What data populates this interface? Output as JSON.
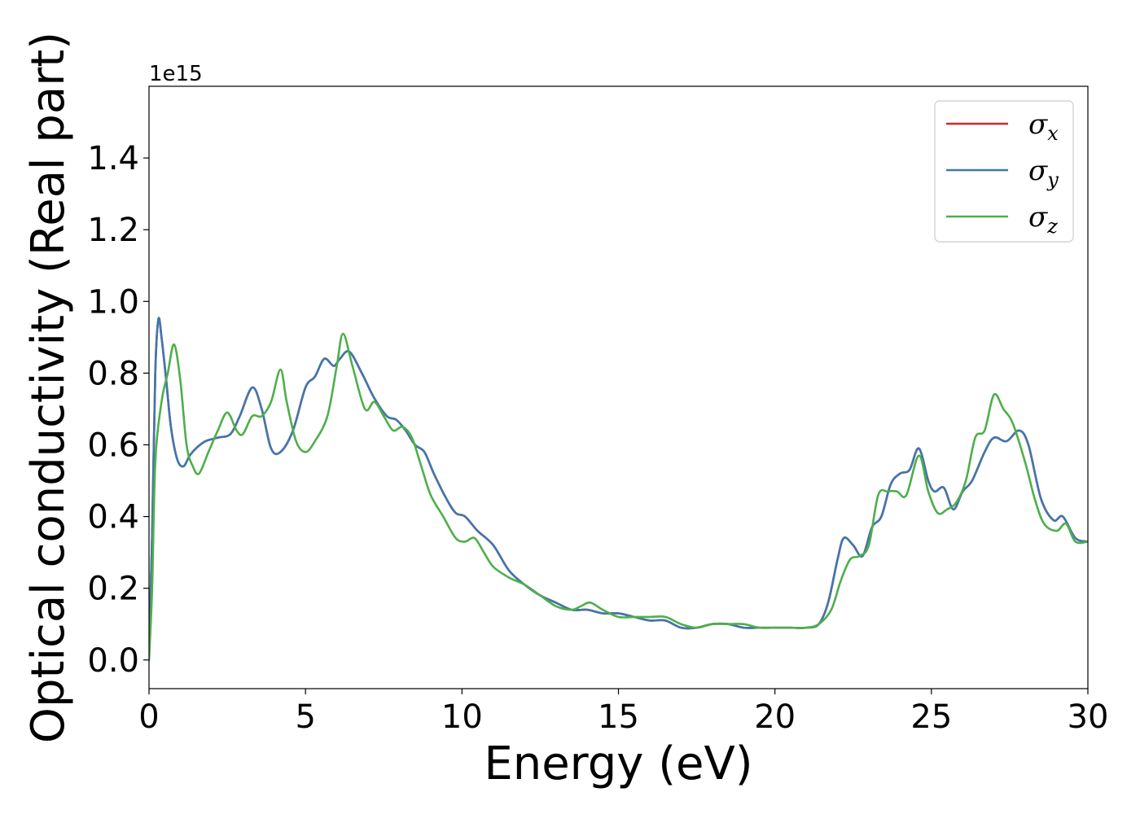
{
  "chart_data": {
    "type": "line",
    "xlabel": "Energy (eV)",
    "ylabel": "Optical conductivity (Real part)",
    "y_offset_label": "1e15",
    "xlim": [
      0,
      30
    ],
    "ylim": [
      -0.08,
      1.6
    ],
    "x_ticks": [
      0,
      5,
      10,
      15,
      20,
      25,
      30
    ],
    "y_ticks": [
      0.0,
      0.2,
      0.4,
      0.6,
      0.8,
      1.0,
      1.2,
      1.4
    ],
    "x_tick_labels": [
      "0",
      "5",
      "10",
      "15",
      "20",
      "25",
      "30"
    ],
    "y_tick_labels": [
      "0.0",
      "0.2",
      "0.4",
      "0.6",
      "0.8",
      "1.0",
      "1.2",
      "1.4"
    ],
    "grid": false,
    "legend_position": "top-right",
    "series": [
      {
        "name": "σx",
        "symbol": "σ",
        "subscript": "x",
        "color": "#d62728",
        "x": [
          0,
          0.1,
          0.2,
          0.3,
          0.4,
          0.55,
          0.7,
          0.9,
          1.1,
          1.3,
          1.5,
          1.8,
          2.2,
          2.6,
          2.9,
          3.3,
          3.6,
          3.9,
          4.2,
          4.6,
          5.0,
          5.3,
          5.6,
          5.9,
          6.1,
          6.4,
          6.8,
          7.2,
          7.6,
          7.9,
          8.2,
          8.5,
          8.8,
          9.1,
          9.5,
          9.8,
          10.1,
          10.5,
          11.0,
          11.5,
          12.0,
          12.5,
          13.0,
          13.5,
          14.0,
          14.5,
          15.0,
          15.5,
          16.0,
          16.5,
          17.0,
          17.5,
          18.0,
          18.5,
          19.0,
          19.5,
          20.0,
          20.5,
          21.0,
          21.4,
          21.7,
          22.0,
          22.2,
          22.5,
          22.8,
          23.1,
          23.4,
          23.7,
          24.0,
          24.3,
          24.6,
          24.9,
          25.1,
          25.4,
          25.7,
          26.0,
          26.3,
          26.7,
          27.0,
          27.4,
          27.8,
          28.1,
          28.5,
          28.9,
          29.2,
          29.6,
          30.0
        ],
        "values": [
          0.02,
          0.35,
          0.8,
          0.95,
          0.9,
          0.78,
          0.65,
          0.56,
          0.54,
          0.57,
          0.59,
          0.61,
          0.62,
          0.63,
          0.68,
          0.76,
          0.7,
          0.59,
          0.58,
          0.64,
          0.76,
          0.79,
          0.84,
          0.82,
          0.84,
          0.86,
          0.8,
          0.73,
          0.68,
          0.67,
          0.64,
          0.6,
          0.58,
          0.52,
          0.45,
          0.41,
          0.4,
          0.36,
          0.32,
          0.25,
          0.21,
          0.18,
          0.16,
          0.14,
          0.14,
          0.13,
          0.13,
          0.12,
          0.11,
          0.11,
          0.09,
          0.09,
          0.1,
          0.1,
          0.09,
          0.09,
          0.09,
          0.09,
          0.09,
          0.1,
          0.16,
          0.28,
          0.34,
          0.32,
          0.29,
          0.37,
          0.4,
          0.49,
          0.52,
          0.53,
          0.59,
          0.5,
          0.47,
          0.48,
          0.42,
          0.47,
          0.5,
          0.58,
          0.62,
          0.61,
          0.64,
          0.6,
          0.45,
          0.39,
          0.4,
          0.34,
          0.33
        ]
      },
      {
        "name": "σy",
        "symbol": "σ",
        "subscript": "y",
        "color": "#3f77ae",
        "x": [
          0,
          0.1,
          0.2,
          0.3,
          0.4,
          0.55,
          0.7,
          0.9,
          1.1,
          1.3,
          1.5,
          1.8,
          2.2,
          2.6,
          2.9,
          3.3,
          3.6,
          3.9,
          4.2,
          4.6,
          5.0,
          5.3,
          5.6,
          5.9,
          6.1,
          6.4,
          6.8,
          7.2,
          7.6,
          7.9,
          8.2,
          8.5,
          8.8,
          9.1,
          9.5,
          9.8,
          10.1,
          10.5,
          11.0,
          11.5,
          12.0,
          12.5,
          13.0,
          13.5,
          14.0,
          14.5,
          15.0,
          15.5,
          16.0,
          16.5,
          17.0,
          17.5,
          18.0,
          18.5,
          19.0,
          19.5,
          20.0,
          20.5,
          21.0,
          21.4,
          21.7,
          22.0,
          22.2,
          22.5,
          22.8,
          23.1,
          23.4,
          23.7,
          24.0,
          24.3,
          24.6,
          24.9,
          25.1,
          25.4,
          25.7,
          26.0,
          26.3,
          26.7,
          27.0,
          27.4,
          27.8,
          28.1,
          28.5,
          28.9,
          29.2,
          29.6,
          30.0
        ],
        "values": [
          0.02,
          0.35,
          0.8,
          0.95,
          0.9,
          0.78,
          0.65,
          0.56,
          0.54,
          0.57,
          0.59,
          0.61,
          0.62,
          0.63,
          0.68,
          0.76,
          0.7,
          0.59,
          0.58,
          0.64,
          0.76,
          0.79,
          0.84,
          0.82,
          0.84,
          0.86,
          0.8,
          0.73,
          0.68,
          0.67,
          0.64,
          0.6,
          0.58,
          0.52,
          0.45,
          0.41,
          0.4,
          0.36,
          0.32,
          0.25,
          0.21,
          0.18,
          0.16,
          0.14,
          0.14,
          0.13,
          0.13,
          0.12,
          0.11,
          0.11,
          0.09,
          0.09,
          0.1,
          0.1,
          0.09,
          0.09,
          0.09,
          0.09,
          0.09,
          0.1,
          0.16,
          0.28,
          0.34,
          0.32,
          0.29,
          0.37,
          0.4,
          0.49,
          0.52,
          0.53,
          0.59,
          0.5,
          0.47,
          0.48,
          0.42,
          0.47,
          0.5,
          0.58,
          0.62,
          0.61,
          0.64,
          0.6,
          0.45,
          0.39,
          0.4,
          0.34,
          0.33
        ]
      },
      {
        "name": "σz",
        "symbol": "σ",
        "subscript": "z",
        "color": "#4daf4a",
        "x": [
          0,
          0.1,
          0.2,
          0.4,
          0.6,
          0.8,
          1.0,
          1.2,
          1.4,
          1.6,
          1.9,
          2.2,
          2.5,
          2.8,
          3.0,
          3.3,
          3.6,
          3.9,
          4.2,
          4.4,
          4.7,
          5.0,
          5.3,
          5.7,
          6.0,
          6.2,
          6.5,
          6.9,
          7.2,
          7.5,
          7.8,
          8.1,
          8.4,
          8.7,
          9.0,
          9.4,
          9.8,
          10.1,
          10.4,
          10.7,
          11.0,
          11.5,
          12.0,
          12.5,
          13.0,
          13.5,
          13.8,
          14.1,
          14.5,
          15.0,
          15.5,
          16.0,
          16.5,
          17.0,
          17.5,
          18.0,
          18.5,
          19.0,
          19.5,
          20.0,
          20.5,
          21.0,
          21.4,
          21.8,
          22.1,
          22.4,
          22.7,
          23.0,
          23.3,
          23.6,
          23.9,
          24.2,
          24.6,
          24.9,
          25.2,
          25.5,
          25.8,
          26.1,
          26.4,
          26.7,
          27.0,
          27.3,
          27.6,
          28.0,
          28.3,
          28.6,
          29.0,
          29.3,
          29.6,
          30.0
        ],
        "values": [
          0.0,
          0.2,
          0.55,
          0.72,
          0.8,
          0.88,
          0.78,
          0.6,
          0.54,
          0.52,
          0.58,
          0.64,
          0.69,
          0.64,
          0.63,
          0.68,
          0.68,
          0.72,
          0.81,
          0.72,
          0.61,
          0.58,
          0.61,
          0.68,
          0.82,
          0.91,
          0.82,
          0.7,
          0.72,
          0.68,
          0.64,
          0.65,
          0.62,
          0.54,
          0.46,
          0.4,
          0.34,
          0.33,
          0.34,
          0.3,
          0.26,
          0.23,
          0.21,
          0.18,
          0.15,
          0.14,
          0.15,
          0.16,
          0.14,
          0.12,
          0.12,
          0.12,
          0.12,
          0.1,
          0.09,
          0.1,
          0.1,
          0.1,
          0.09,
          0.09,
          0.09,
          0.09,
          0.1,
          0.14,
          0.22,
          0.28,
          0.29,
          0.32,
          0.46,
          0.47,
          0.47,
          0.46,
          0.57,
          0.47,
          0.41,
          0.42,
          0.44,
          0.5,
          0.62,
          0.64,
          0.74,
          0.7,
          0.66,
          0.55,
          0.45,
          0.38,
          0.36,
          0.38,
          0.33,
          0.33
        ]
      }
    ]
  }
}
